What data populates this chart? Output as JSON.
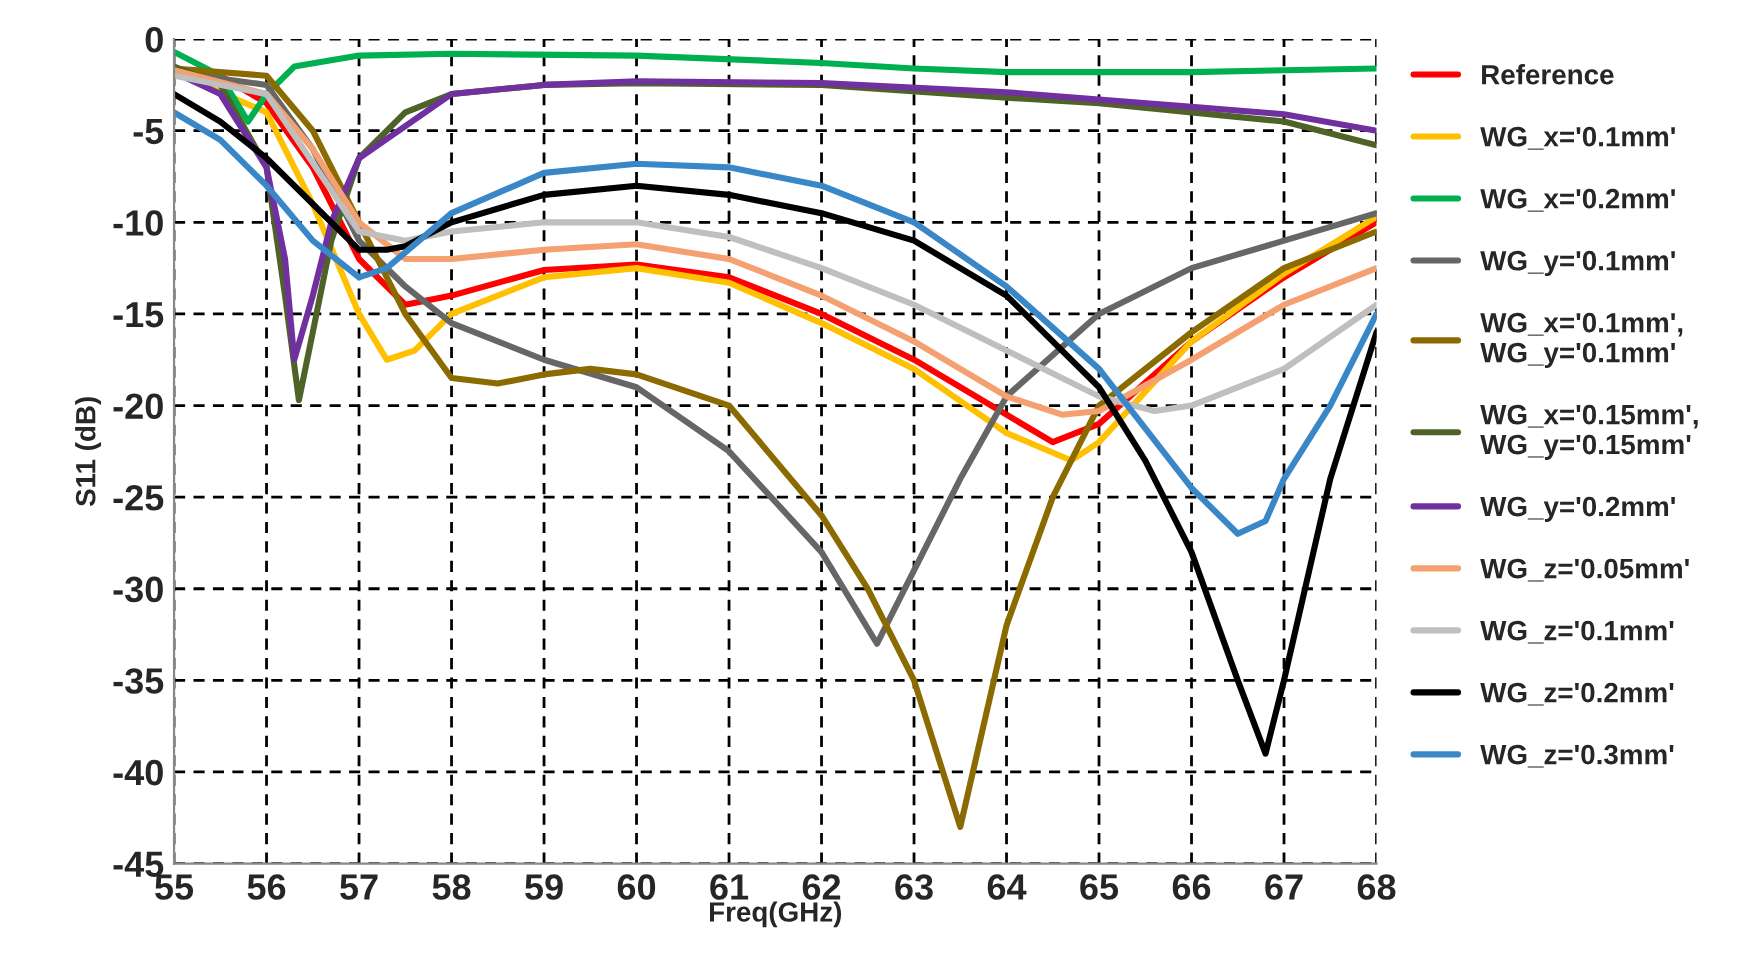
{
  "chart_data": {
    "type": "line",
    "xlabel": "Freq(GHz)",
    "ylabel": "S11 (dB)",
    "xlim": [
      55,
      68
    ],
    "ylim": [
      -45,
      0
    ],
    "xticks": [
      55,
      56,
      57,
      58,
      59,
      60,
      61,
      62,
      63,
      64,
      65,
      66,
      67,
      68
    ],
    "yticks": [
      -45,
      -40,
      -35,
      -30,
      -25,
      -20,
      -15,
      -10,
      -5,
      0
    ],
    "grid": true,
    "legend": "right",
    "marker": "none",
    "line_style": "solid",
    "series": [
      {
        "name": "Reference",
        "color": "#ff0000",
        "x": [
          55,
          55.5,
          56,
          56.5,
          57,
          57.5,
          58,
          59,
          60,
          61,
          62,
          63,
          64,
          64.5,
          65,
          66,
          67,
          68
        ],
        "values": [
          -1.8,
          -2,
          -3.5,
          -7,
          -12,
          -14.5,
          -14,
          -12.6,
          -12.3,
          -13,
          -15,
          -17.5,
          -20.5,
          -22,
          -21,
          -16.5,
          -13,
          -10
        ]
      },
      {
        "name": "WG_x='0.1mm'",
        "color": "#ffc000",
        "x": [
          55,
          56,
          56.5,
          57,
          57.3,
          57.6,
          58,
          59,
          60,
          61,
          62,
          63,
          64,
          64.7,
          65,
          66,
          67,
          68
        ],
        "values": [
          -1.8,
          -4,
          -9,
          -15,
          -17.5,
          -17,
          -15,
          -13,
          -12.5,
          -13.3,
          -15.5,
          -18,
          -21.5,
          -23,
          -22,
          -16.5,
          -12.8,
          -9.7
        ]
      },
      {
        "name": "WG_x='0.2mm'",
        "color": "#00b050",
        "x": [
          55,
          55.5,
          55.8,
          56,
          56.3,
          57,
          58,
          60,
          62,
          63,
          64,
          65,
          66,
          67,
          68
        ],
        "values": [
          -0.7,
          -2,
          -4.5,
          -3,
          -1.5,
          -0.9,
          -0.8,
          -0.9,
          -1.3,
          -1.6,
          -1.8,
          -1.8,
          -1.8,
          -1.7,
          -1.6
        ]
      },
      {
        "name": "WG_y='0.1mm'",
        "color": "#666666",
        "x": [
          55,
          56,
          56.5,
          57,
          57.5,
          58,
          59,
          60,
          61,
          62,
          62.6,
          63,
          63.5,
          64,
          65,
          66,
          67,
          68
        ],
        "values": [
          -1.8,
          -2.5,
          -6,
          -11,
          -13.5,
          -15.5,
          -17.5,
          -19,
          -22.5,
          -28,
          -33,
          -29,
          -24,
          -19.5,
          -15,
          -12.5,
          -11,
          -9.5
        ]
      },
      {
        "name": "WG_x='0.1mm',\nWG_y='0.1mm'",
        "color": "#8b6b00",
        "x": [
          55,
          56,
          56.5,
          57,
          57.5,
          58,
          58.5,
          59,
          59.5,
          60,
          61,
          62,
          62.5,
          63,
          63.5,
          64,
          64.5,
          65,
          66,
          67,
          68
        ],
        "values": [
          -1.6,
          -2,
          -5,
          -10,
          -15,
          -18.5,
          -18.8,
          -18.3,
          -18,
          -18.3,
          -20,
          -26,
          -30,
          -35,
          -43,
          -32,
          -25,
          -20,
          -16,
          -12.5,
          -10.5
        ]
      },
      {
        "name": "WG_x='0.15mm',\nWG_y='0.15mm'",
        "color": "#4f6228",
        "x": [
          55,
          55.5,
          56,
          56.2,
          56.35,
          56.5,
          56.7,
          57,
          57.5,
          58,
          59,
          60,
          62,
          64,
          65,
          66,
          67,
          68
        ],
        "values": [
          -1.5,
          -2.5,
          -7,
          -14,
          -19.7,
          -16,
          -11,
          -6.5,
          -4,
          -3,
          -2.5,
          -2.4,
          -2.5,
          -3.2,
          -3.5,
          -4,
          -4.5,
          -5.8
        ]
      },
      {
        "name": "WG_y='0.2mm'",
        "color": "#7030a0",
        "x": [
          55,
          55.5,
          56,
          56.2,
          56.3,
          56.5,
          56.7,
          57,
          58,
          59,
          60,
          62,
          64,
          65,
          66,
          67,
          68
        ],
        "values": [
          -1.8,
          -3,
          -7,
          -12,
          -17.5,
          -14,
          -10,
          -6.5,
          -3,
          -2.5,
          -2.3,
          -2.4,
          -2.9,
          -3.3,
          -3.7,
          -4.1,
          -5
        ]
      },
      {
        "name": "WG_z='0.05mm'",
        "color": "#f4a070",
        "x": [
          55,
          56,
          56.5,
          57,
          57.5,
          58,
          59,
          60,
          61,
          62,
          63,
          64,
          64.6,
          65,
          66,
          67,
          68
        ],
        "values": [
          -1.7,
          -3,
          -6,
          -10,
          -12,
          -12,
          -11.5,
          -11.2,
          -12,
          -14,
          -16.5,
          -19.5,
          -20.5,
          -20.3,
          -17.5,
          -14.5,
          -12.5
        ]
      },
      {
        "name": "WG_z='0.1mm'",
        "color": "#bfbfbf",
        "x": [
          55,
          56,
          57,
          57.5,
          58,
          59,
          60,
          61,
          62,
          63,
          64,
          65,
          65.6,
          66,
          67,
          68
        ],
        "values": [
          -2,
          -3,
          -10.5,
          -11,
          -10.5,
          -10,
          -10,
          -10.8,
          -12.5,
          -14.5,
          -17,
          -19.5,
          -20.3,
          -20,
          -18,
          -14.5
        ]
      },
      {
        "name": "WG_z='0.2mm'",
        "color": "#000000",
        "x": [
          55,
          55.5,
          56,
          56.5,
          57,
          57.3,
          57.5,
          58,
          59,
          60,
          61,
          62,
          63,
          64,
          65,
          65.5,
          66,
          66.5,
          66.8,
          67,
          67.5,
          68
        ],
        "values": [
          -3,
          -4.5,
          -6.5,
          -9,
          -11.5,
          -11.5,
          -11.3,
          -10,
          -8.5,
          -8,
          -8.5,
          -9.5,
          -11,
          -14,
          -19,
          -23,
          -28,
          -35,
          -39,
          -35,
          -24,
          -16
        ]
      },
      {
        "name": "WG_z='0.3mm'",
        "color": "#3a87c8",
        "x": [
          55,
          55.5,
          56,
          56.5,
          57,
          57.3,
          58,
          59,
          60,
          61,
          62,
          63,
          64,
          65,
          66,
          66.5,
          66.8,
          67,
          67.5,
          68
        ],
        "values": [
          -4,
          -5.5,
          -8,
          -11,
          -13,
          -12.5,
          -9.5,
          -7.3,
          -6.8,
          -7,
          -8,
          -10,
          -13.5,
          -18,
          -24.5,
          -27,
          -26.3,
          -24,
          -20,
          -15
        ]
      }
    ]
  }
}
